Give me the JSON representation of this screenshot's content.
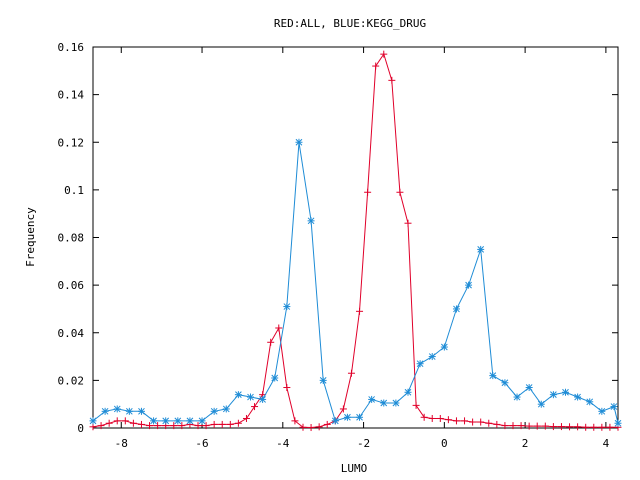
{
  "chart_data": {
    "type": "line",
    "title": "RED:ALL, BLUE:KEGG_DRUG",
    "xlabel": "LUMO",
    "ylabel": "Frequency",
    "xlim": [
      -8.7,
      4.3
    ],
    "ylim": [
      0,
      0.16
    ],
    "xticks": [
      -8,
      -6,
      -4,
      -2,
      0,
      2,
      4
    ],
    "yticks": [
      0,
      0.02,
      0.04,
      0.06,
      0.08,
      0.1,
      0.12,
      0.14,
      0.16
    ],
    "grid": false,
    "legend": "none",
    "series": [
      {
        "color": "#e0002a",
        "marker": "plus",
        "x": [
          -8.7,
          -8.5,
          -8.3,
          -8.1,
          -7.9,
          -7.7,
          -7.5,
          -7.3,
          -7.1,
          -6.9,
          -6.7,
          -6.5,
          -6.3,
          -6.1,
          -5.9,
          -5.7,
          -5.5,
          -5.3,
          -5.1,
          -4.9,
          -4.7,
          -4.5,
          -4.3,
          -4.1,
          -3.9,
          -3.7,
          -3.5,
          -3.3,
          -3.1,
          -2.9,
          -2.7,
          -2.5,
          -2.3,
          -2.1,
          -1.9,
          -1.7,
          -1.5,
          -1.3,
          -1.1,
          -0.9,
          -0.7,
          -0.5,
          -0.3,
          -0.1,
          0.1,
          0.3,
          0.5,
          0.7,
          0.9,
          1.1,
          1.3,
          1.5,
          1.7,
          1.9,
          2.1,
          2.3,
          2.5,
          2.7,
          2.9,
          3.1,
          3.3,
          3.5,
          3.7,
          3.9,
          4.1,
          4.3
        ],
        "y": [
          0.0005,
          0.001,
          0.002,
          0.003,
          0.003,
          0.002,
          0.0015,
          0.001,
          0.001,
          0.001,
          0.001,
          0.001,
          0.0015,
          0.001,
          0.001,
          0.0015,
          0.0015,
          0.0015,
          0.002,
          0.004,
          0.009,
          0.014,
          0.036,
          0.042,
          0.017,
          0.003,
          0.0003,
          0.0002,
          0.0005,
          0.0015,
          0.003,
          0.008,
          0.023,
          0.049,
          0.099,
          0.152,
          0.157,
          0.146,
          0.099,
          0.086,
          0.0095,
          0.0045,
          0.004,
          0.004,
          0.0035,
          0.003,
          0.003,
          0.0025,
          0.0025,
          0.002,
          0.0015,
          0.001,
          0.001,
          0.001,
          0.0008,
          0.0008,
          0.0008,
          0.0006,
          0.0006,
          0.0005,
          0.0005,
          0.0003,
          0.0003,
          0.0003,
          0.0003,
          0.0003
        ]
      },
      {
        "color": "#1e8cd6",
        "marker": "star",
        "x": [
          -8.7,
          -8.4,
          -8.1,
          -7.8,
          -7.5,
          -7.2,
          -6.9,
          -6.6,
          -6.3,
          -6.0,
          -5.7,
          -5.4,
          -5.1,
          -4.8,
          -4.5,
          -4.2,
          -3.9,
          -3.6,
          -3.3,
          -3.0,
          -2.7,
          -2.4,
          -2.1,
          -1.8,
          -1.5,
          -1.2,
          -0.9,
          -0.6,
          -0.3,
          0.0,
          0.3,
          0.6,
          0.9,
          1.2,
          1.5,
          1.8,
          2.1,
          2.4,
          2.7,
          3.0,
          3.3,
          3.6,
          3.9,
          4.2,
          4.3
        ],
        "y": [
          0.003,
          0.007,
          0.008,
          0.007,
          0.007,
          0.003,
          0.003,
          0.003,
          0.003,
          0.003,
          0.007,
          0.008,
          0.014,
          0.013,
          0.012,
          0.021,
          0.051,
          0.12,
          0.087,
          0.02,
          0.003,
          0.0045,
          0.0045,
          0.012,
          0.0105,
          0.0105,
          0.015,
          0.027,
          0.03,
          0.034,
          0.05,
          0.06,
          0.075,
          0.022,
          0.019,
          0.013,
          0.017,
          0.01,
          0.014,
          0.015,
          0.013,
          0.011,
          0.007,
          0.009,
          0.002
        ]
      }
    ]
  }
}
